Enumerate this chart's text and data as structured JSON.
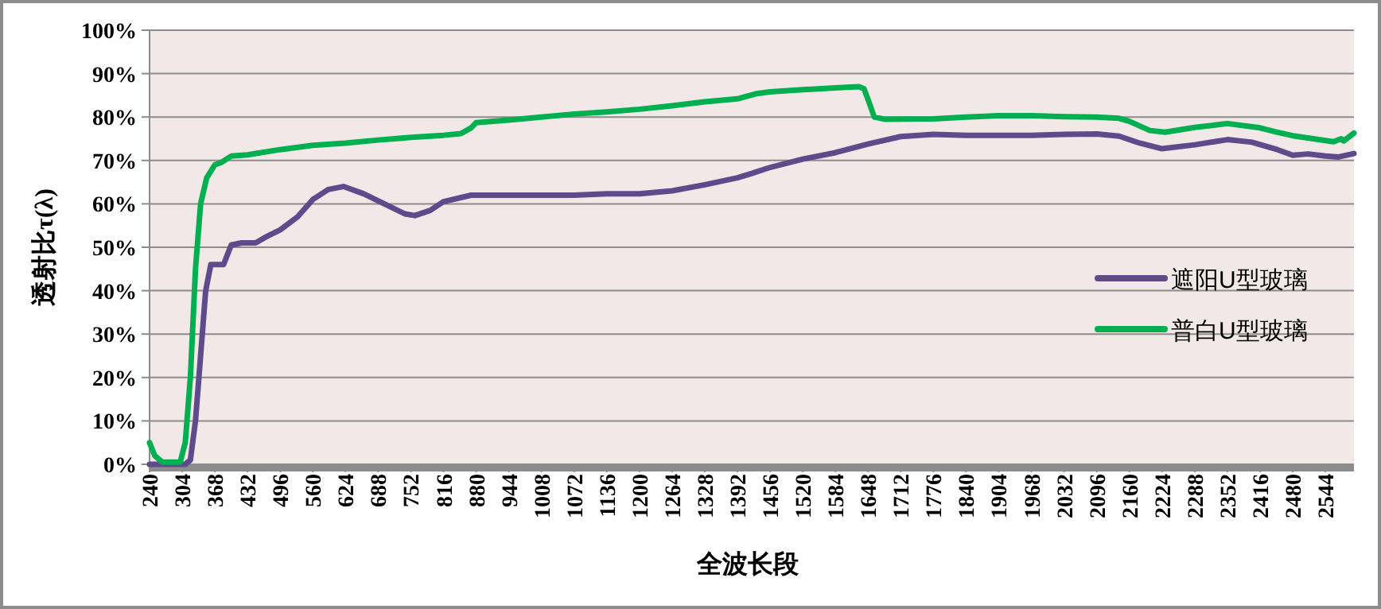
{
  "chart_data": {
    "type": "line",
    "xlabel": "全波长段",
    "ylabel": "透射比τ(λ)",
    "xlim": [
      240,
      2600
    ],
    "xticks": [
      240,
      304,
      368,
      432,
      496,
      560,
      624,
      688,
      752,
      816,
      880,
      944,
      1008,
      1072,
      1136,
      1200,
      1264,
      1328,
      1392,
      1456,
      1520,
      1584,
      1648,
      1712,
      1776,
      1840,
      1904,
      1968,
      2032,
      2096,
      2160,
      2224,
      2288,
      2352,
      2416,
      2480,
      2544
    ],
    "ylim": [
      0,
      100
    ],
    "yticks": [
      {
        "value": 0,
        "label": "0%"
      },
      {
        "value": 10,
        "label": "10%"
      },
      {
        "value": 20,
        "label": "20%"
      },
      {
        "value": 30,
        "label": "30%"
      },
      {
        "value": 40,
        "label": "40%"
      },
      {
        "value": 50,
        "label": "50%"
      },
      {
        "value": 60,
        "label": "60%"
      },
      {
        "value": 70,
        "label": "70%"
      },
      {
        "value": 80,
        "label": "80%"
      },
      {
        "value": 90,
        "label": "90%"
      },
      {
        "value": 100,
        "label": "100%"
      }
    ],
    "grid": "y",
    "legend": "right",
    "series": [
      {
        "name": "遮阳U型玻璃",
        "color": "#5f4b8b",
        "x": [
          240,
          310,
          320,
          330,
          340,
          350,
          360,
          375,
          385,
          400,
          420,
          448,
          470,
          496,
          530,
          560,
          590,
          620,
          660,
          700,
          740,
          760,
          790,
          816,
          870,
          944,
          1072,
          1136,
          1200,
          1264,
          1328,
          1392,
          1420,
          1456,
          1520,
          1584,
          1648,
          1712,
          1776,
          1840,
          1968,
          2032,
          2096,
          2140,
          2180,
          2224,
          2288,
          2352,
          2400,
          2450,
          2480,
          2510,
          2544,
          2570,
          2600
        ],
        "values": [
          0,
          0,
          1,
          10,
          25,
          40,
          46,
          46,
          46,
          50.5,
          51,
          51,
          52.5,
          54,
          57,
          61,
          63.3,
          64,
          62.3,
          60,
          57.7,
          57.3,
          58.5,
          60.5,
          62,
          62,
          62,
          62.3,
          62.3,
          63,
          64.4,
          66,
          67,
          68.4,
          70.3,
          71.8,
          73.8,
          75.5,
          76,
          75.8,
          75.8,
          76,
          76.1,
          75.6,
          74,
          72.7,
          73.6,
          74.8,
          74.2,
          72.5,
          71.2,
          71.5,
          71,
          70.8,
          71.6
        ]
      },
      {
        "name": "普白U型玻璃",
        "color": "#00b050",
        "x": [
          240,
          250,
          265,
          300,
          310,
          320,
          330,
          340,
          352,
          368,
          380,
          400,
          432,
          496,
          560,
          624,
          688,
          752,
          816,
          850,
          870,
          880,
          944,
          1008,
          1072,
          1136,
          1200,
          1264,
          1328,
          1392,
          1430,
          1456,
          1520,
          1584,
          1630,
          1640,
          1648,
          1660,
          1680,
          1776,
          1840,
          1904,
          1968,
          2032,
          2096,
          2140,
          2160,
          2200,
          2230,
          2288,
          2352,
          2416,
          2450,
          2480,
          2520,
          2560,
          2575,
          2580,
          2600
        ],
        "values": [
          5,
          2,
          0.5,
          0.5,
          5,
          20,
          45,
          60,
          66,
          69,
          69.5,
          71,
          71.3,
          72.5,
          73.5,
          74,
          74.7,
          75.3,
          75.8,
          76.2,
          77.5,
          78.7,
          79.3,
          80,
          80.7,
          81.2,
          81.8,
          82.6,
          83.5,
          84.2,
          85.4,
          85.8,
          86.3,
          86.7,
          87,
          86.5,
          84,
          80,
          79.5,
          79.6,
          80,
          80.3,
          80.3,
          80.1,
          80,
          79.7,
          79,
          76.9,
          76.5,
          77.6,
          78.5,
          77.5,
          76.5,
          75.7,
          75,
          74.3,
          75,
          74.5,
          76.3
        ]
      }
    ]
  }
}
